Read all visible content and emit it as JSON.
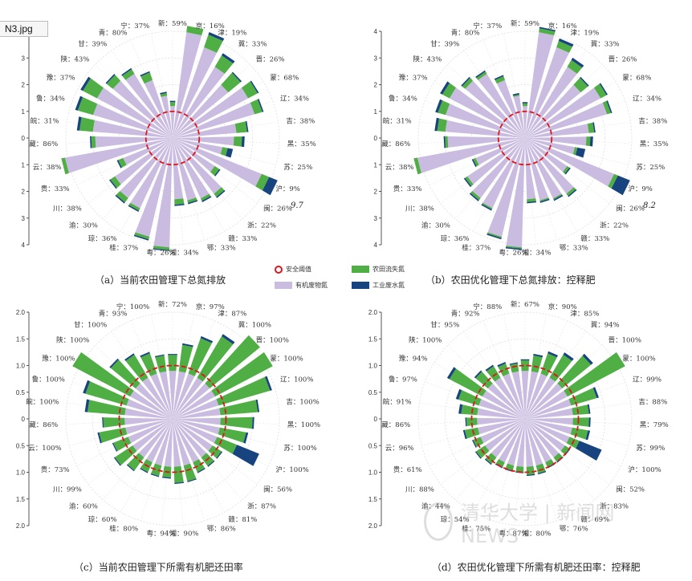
{
  "file_tab": "N3.jpg",
  "legend": {
    "threshold": "安全阈值",
    "farmland": "农田流失氮",
    "organic": "有机废物氮",
    "industrial": "工业废水氮"
  },
  "colors": {
    "organic": "#c9bce0",
    "farmland": "#4fae44",
    "industrial": "#17447e",
    "threshold": "#e0141b"
  },
  "watermark": "清华大学 | 新闻网 NEWS",
  "chart_data": [
    {
      "type": "bar",
      "projection": "polar",
      "caption": "（a）当前农田管理下总氮排放",
      "ylim": [
        0,
        4
      ],
      "threshold": 1,
      "ticks": [
        "0",
        "1",
        "2",
        "3",
        "4"
      ],
      "categories": [
        "新",
        "京",
        "津",
        "冀",
        "晋",
        "蒙",
        "辽",
        "吉",
        "黑",
        "苏",
        "沪",
        "闽",
        "浙",
        "赣",
        "鄂",
        "湘",
        "粤",
        "桂",
        "琼",
        "渝",
        "川",
        "贵",
        "云",
        "藏",
        "皖",
        "鲁",
        "豫",
        "陕",
        "甘",
        "青",
        "宁"
      ],
      "labels": [
        "59%",
        "16%",
        "19%",
        "33%",
        "26%",
        "68%",
        "34%",
        "38%",
        "35%",
        "25%",
        "9%",
        "26%",
        "22%",
        "33%",
        "33%",
        "34%",
        "26%",
        "37%",
        "36%",
        "30%",
        "38%",
        "33%",
        "38%",
        "86%",
        "31%",
        "34%",
        "37%",
        "43%",
        "39%",
        "80%",
        "37%"
      ],
      "series": [
        {
          "name": "有机废物氮",
          "values": [
            1.2,
            4.0,
            3.6,
            3.1,
            2.7,
            3.2,
            3.2,
            2.4,
            2.3,
            1.9,
            3.6,
            1.9,
            2.6,
            2.5,
            2.4,
            2.3,
            4.1,
            3.8,
            2.9,
            2.8,
            2.6,
            2.0,
            4.1,
            2.9,
            3.0,
            3.1,
            3.2,
            2.9,
            2.8,
            2.3,
            1.6
          ]
        },
        {
          "name": "农田流失氮",
          "values": [
            0.15,
            0.3,
            0.5,
            0.5,
            0.6,
            0.4,
            0.3,
            0.4,
            0.3,
            0.2,
            0.3,
            0.2,
            0.15,
            0.1,
            0.1,
            0.2,
            0.1,
            0.1,
            0.1,
            0.2,
            0.2,
            0.2,
            0.3,
            0.15,
            0.5,
            0.6,
            0.6,
            0.3,
            0.2,
            0.3,
            0.1
          ]
        },
        {
          "name": "工业废水氮",
          "values": [
            0.05,
            0.05,
            0.1,
            0.1,
            0.05,
            0.05,
            0.05,
            0.05,
            0.1,
            0.2,
            0.6,
            0.05,
            0.05,
            0.05,
            0.05,
            0.05,
            0.05,
            0.05,
            0.05,
            0.05,
            0.05,
            0.05,
            0.05,
            0.05,
            0.1,
            0.1,
            0.1,
            0.05,
            0.05,
            0.05,
            0.05
          ]
        }
      ],
      "annotation": "9.7"
    },
    {
      "type": "bar",
      "projection": "polar",
      "caption": "（b）农田优化管理下总氮排放：控释肥",
      "ylim": [
        0,
        4
      ],
      "threshold": 1,
      "ticks": [
        "0",
        "1",
        "2",
        "3",
        "4"
      ],
      "categories": [
        "新",
        "京",
        "津",
        "冀",
        "晋",
        "蒙",
        "辽",
        "吉",
        "黑",
        "苏",
        "沪",
        "闽",
        "浙",
        "赣",
        "鄂",
        "湘",
        "粤",
        "桂",
        "琼",
        "渝",
        "川",
        "贵",
        "云",
        "藏",
        "皖",
        "鲁",
        "豫",
        "陕",
        "甘",
        "青",
        "宁"
      ],
      "labels": [
        "59%",
        "16%",
        "19%",
        "33%",
        "26%",
        "68%",
        "34%",
        "38%",
        "35%",
        "25%",
        "9%",
        "26%",
        "22%",
        "33%",
        "33%",
        "34%",
        "26%",
        "37%",
        "36%",
        "30%",
        "38%",
        "33%",
        "38%",
        "86%",
        "31%",
        "34%",
        "37%",
        "43%",
        "39%",
        "80%",
        "37%"
      ],
      "series": [
        {
          "name": "有机废物氮",
          "values": [
            1.2,
            4.0,
            3.6,
            3.1,
            2.7,
            3.2,
            3.2,
            2.4,
            2.3,
            1.9,
            3.6,
            1.9,
            2.6,
            2.5,
            2.4,
            2.3,
            4.1,
            3.8,
            2.9,
            2.8,
            2.6,
            2.0,
            4.1,
            2.9,
            3.0,
            3.1,
            3.2,
            2.9,
            2.8,
            2.3,
            1.6
          ]
        },
        {
          "name": "农田流失氮",
          "values": [
            0.1,
            0.15,
            0.25,
            0.3,
            0.35,
            0.25,
            0.15,
            0.2,
            0.15,
            0.1,
            0.15,
            0.1,
            0.1,
            0.05,
            0.05,
            0.1,
            0.05,
            0.05,
            0.05,
            0.1,
            0.1,
            0.1,
            0.15,
            0.1,
            0.3,
            0.3,
            0.3,
            0.15,
            0.1,
            0.15,
            0.05
          ]
        },
        {
          "name": "工业废水氮",
          "values": [
            0.05,
            0.05,
            0.1,
            0.1,
            0.05,
            0.05,
            0.05,
            0.05,
            0.1,
            0.3,
            0.6,
            0.05,
            0.05,
            0.05,
            0.05,
            0.05,
            0.05,
            0.05,
            0.05,
            0.05,
            0.05,
            0.05,
            0.05,
            0.05,
            0.1,
            0.1,
            0.1,
            0.05,
            0.05,
            0.05,
            0.05
          ]
        }
      ],
      "annotation": "8.2"
    },
    {
      "type": "bar",
      "projection": "polar",
      "caption": "（c）当前农田管理下所需有机肥还田率",
      "ylim": [
        0,
        2
      ],
      "threshold": 1,
      "ticks": [
        "0",
        "0.5",
        "1.0",
        "1.5",
        "2.0"
      ],
      "categories": [
        "新",
        "京",
        "津",
        "冀",
        "晋",
        "蒙",
        "辽",
        "吉",
        "黑",
        "苏",
        "沪",
        "闽",
        "浙",
        "赣",
        "鄂",
        "湘",
        "粤",
        "桂",
        "琼",
        "渝",
        "川",
        "贵",
        "云",
        "藏",
        "皖",
        "鲁",
        "豫",
        "陕",
        "甘",
        "青",
        "宁"
      ],
      "labels": [
        "72%",
        "97%",
        "87%",
        "100%",
        "100%",
        "100%",
        "100%",
        "100%",
        "100%",
        "100%",
        "100%",
        "56%",
        "87%",
        "81%",
        "86%",
        "90%",
        "94%",
        "80%",
        "60%",
        "60%",
        "99%",
        "73%",
        "100%",
        "86%",
        "100%",
        "100%",
        "100%",
        "100%",
        "100%",
        "93%",
        "100%"
      ],
      "series": [
        {
          "name": "有机废物氮",
          "values": [
            0.9,
            0.9,
            0.9,
            0.9,
            0.9,
            0.9,
            0.9,
            0.9,
            0.9,
            0.9,
            0.9,
            0.9,
            0.9,
            0.9,
            0.9,
            0.9,
            0.9,
            0.9,
            0.9,
            0.9,
            0.9,
            0.9,
            0.9,
            0.9,
            0.9,
            0.9,
            0.9,
            0.9,
            0.9,
            0.9,
            0.9
          ]
        },
        {
          "name": "农田流失氮",
          "values": [
            0.3,
            0.5,
            0.7,
            0.9,
            1.8,
            1.4,
            1.0,
            0.7,
            0.6,
            0.5,
            0.4,
            0.2,
            0.2,
            0.2,
            0.3,
            0.3,
            0.2,
            0.2,
            0.2,
            0.3,
            0.4,
            0.3,
            0.5,
            0.4,
            0.7,
            0.8,
            1.4,
            0.6,
            0.5,
            0.4,
            0.3
          ]
        },
        {
          "name": "工业废水氮",
          "values": [
            0.02,
            0.03,
            0.04,
            0.05,
            0.05,
            0.04,
            0.04,
            0.03,
            0.03,
            0.04,
            0.45,
            0.02,
            0.02,
            0.02,
            0.02,
            0.02,
            0.02,
            0.02,
            0.02,
            0.02,
            0.02,
            0.02,
            0.03,
            0.02,
            0.05,
            0.05,
            0.05,
            0.03,
            0.03,
            0.03,
            0.02
          ]
        }
      ]
    },
    {
      "type": "bar",
      "projection": "polar",
      "caption": "（d）农田优化管理下所需有机肥还田率：控释肥",
      "ylim": [
        0,
        2
      ],
      "threshold": 1,
      "ticks": [
        "0",
        "0.5",
        "1.0",
        "1.5",
        "2.0"
      ],
      "categories": [
        "新",
        "京",
        "津",
        "冀",
        "晋",
        "蒙",
        "辽",
        "吉",
        "黑",
        "苏",
        "沪",
        "闽",
        "浙",
        "赣",
        "鄂",
        "湘",
        "粤",
        "桂",
        "琼",
        "渝",
        "川",
        "贵",
        "云",
        "藏",
        "皖",
        "鲁",
        "豫",
        "陕",
        "甘",
        "青",
        "宁"
      ],
      "labels": [
        "67%",
        "90%",
        "85%",
        "94%",
        "100%",
        "100%",
        "99%",
        "88%",
        "79%",
        "99%",
        "100%",
        "52%",
        "83%",
        "69%",
        "76%",
        "80%",
        "87%",
        "75%",
        "54%",
        "44%",
        "88%",
        "61%",
        "96%",
        "86%",
        "91%",
        "97%",
        "94%",
        "100%",
        "95%",
        "92%",
        "88%"
      ],
      "series": [
        {
          "name": "有机废物氮",
          "values": [
            0.9,
            0.9,
            0.9,
            0.9,
            0.9,
            0.9,
            0.9,
            0.9,
            0.9,
            0.9,
            0.9,
            0.9,
            0.9,
            0.9,
            0.9,
            0.9,
            0.9,
            0.9,
            0.9,
            0.9,
            0.9,
            0.9,
            0.9,
            0.9,
            0.9,
            0.9,
            0.9,
            0.9,
            0.9,
            0.9,
            0.9
          ]
        },
        {
          "name": "农田流失氮",
          "values": [
            0.2,
            0.3,
            0.4,
            0.5,
            0.7,
            1.4,
            0.5,
            0.3,
            0.3,
            0.3,
            0.2,
            0.1,
            0.1,
            0.1,
            0.15,
            0.15,
            0.1,
            0.1,
            0.1,
            0.15,
            0.2,
            0.15,
            0.25,
            0.2,
            0.3,
            0.4,
            0.7,
            0.3,
            0.25,
            0.2,
            0.15
          ]
        },
        {
          "name": "工业废水氮",
          "values": [
            0.02,
            0.03,
            0.04,
            0.05,
            0.05,
            0.04,
            0.04,
            0.03,
            0.03,
            0.04,
            0.45,
            0.02,
            0.02,
            0.02,
            0.02,
            0.02,
            0.02,
            0.02,
            0.02,
            0.02,
            0.02,
            0.02,
            0.03,
            0.02,
            0.05,
            0.05,
            0.05,
            0.03,
            0.03,
            0.03,
            0.02
          ]
        }
      ]
    }
  ]
}
